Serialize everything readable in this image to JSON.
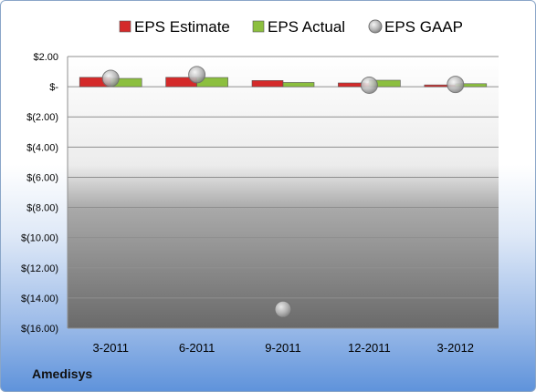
{
  "chart_data": {
    "type": "bar",
    "categories": [
      "3-2011",
      "6-2011",
      "9-2011",
      "12-2011",
      "3-2012"
    ],
    "series": [
      {
        "name": "EPS Estimate",
        "kind": "bar",
        "color": "#d42a2a",
        "values": [
          0.62,
          0.62,
          0.41,
          0.25,
          0.12
        ]
      },
      {
        "name": "EPS Actual",
        "kind": "bar",
        "color": "#8cbf3f",
        "values": [
          0.55,
          0.61,
          0.28,
          0.43,
          0.2
        ]
      },
      {
        "name": "EPS GAAP",
        "kind": "marker",
        "color": "#a8a8a8",
        "values": [
          0.55,
          0.8,
          -14.75,
          0.1,
          0.15
        ]
      }
    ],
    "y_ticks": [
      2,
      0,
      -2,
      -4,
      -6,
      -8,
      -10,
      -12,
      -14,
      -16
    ],
    "y_tick_labels": [
      "$2.00",
      "$-",
      "$(2.00)",
      "$(4.00)",
      "$(6.00)",
      "$(8.00)",
      "$(10.00)",
      "$(12.00)",
      "$(14.00)",
      "$(16.00)"
    ],
    "ylim": [
      -16,
      2
    ],
    "legend": "top",
    "grid": true
  },
  "company": "Amedisys"
}
